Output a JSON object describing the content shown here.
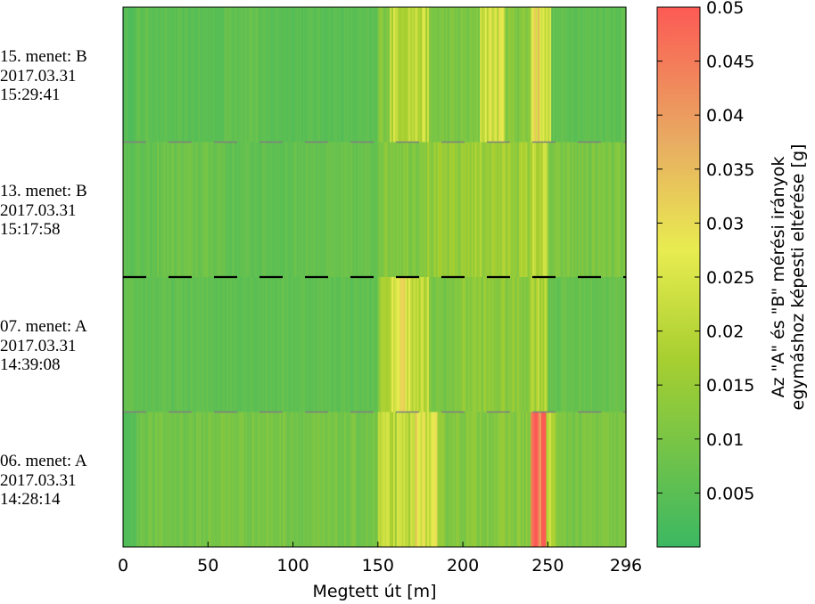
{
  "chart_data": {
    "type": "heatmap",
    "xlabel": "Megtett út [m]",
    "x_ticks": [
      0,
      50,
      100,
      150,
      200,
      250,
      296
    ],
    "xlim": [
      0,
      296
    ],
    "colorbar": {
      "label_line1": "Az \"A\" és \"B\" mérési irányok",
      "label_line2": "egymáshoz képesti eltérése [g]",
      "range": [
        0,
        0.05
      ],
      "ticks": [
        "0.005",
        "0.01",
        "0.015",
        "0.02",
        "0.025",
        "0.03",
        "0.035",
        "0.04",
        "0.045",
        "0.05"
      ],
      "colors": [
        "#3cb862",
        "#a8cf30",
        "#e8ec50",
        "#e8ac62",
        "#fc5a54"
      ]
    },
    "rows": [
      {
        "run": "15. menet: B",
        "date": "2017.03.31",
        "time": "15:29:41",
        "base": 0.004,
        "segments": [
          [
            0,
            8,
            0.004
          ],
          [
            8,
            20,
            0.006
          ],
          [
            20,
            60,
            0.005
          ],
          [
            60,
            80,
            0.007
          ],
          [
            80,
            150,
            0.005
          ],
          [
            150,
            157,
            0.012
          ],
          [
            157,
            180,
            0.021
          ],
          [
            180,
            210,
            0.01
          ],
          [
            210,
            225,
            0.024
          ],
          [
            225,
            240,
            0.012
          ],
          [
            240,
            248,
            0.03
          ],
          [
            248,
            252,
            0.022
          ],
          [
            252,
            296,
            0.006
          ]
        ]
      },
      {
        "run": "13. menet: B",
        "date": "2017.03.31",
        "time": "15:17:58",
        "base": 0.005,
        "segments": [
          [
            0,
            20,
            0.006
          ],
          [
            20,
            60,
            0.008
          ],
          [
            60,
            100,
            0.006
          ],
          [
            100,
            150,
            0.007
          ],
          [
            150,
            175,
            0.012
          ],
          [
            175,
            200,
            0.014
          ],
          [
            200,
            240,
            0.016
          ],
          [
            240,
            250,
            0.02
          ],
          [
            250,
            296,
            0.01
          ]
        ]
      },
      {
        "run": "07. menet: A",
        "date": "2017.03.31",
        "time": "14:39:08",
        "base": 0.005,
        "segments": [
          [
            0,
            150,
            0.006
          ],
          [
            150,
            158,
            0.016
          ],
          [
            158,
            170,
            0.028
          ],
          [
            170,
            180,
            0.02
          ],
          [
            180,
            196,
            0.01
          ],
          [
            196,
            240,
            0.013
          ],
          [
            240,
            250,
            0.019
          ],
          [
            250,
            296,
            0.007
          ]
        ]
      },
      {
        "run": "06. menet: A",
        "date": "2017.03.31",
        "time": "14:28:14",
        "base": 0.006,
        "segments": [
          [
            0,
            8,
            0.004
          ],
          [
            8,
            50,
            0.009
          ],
          [
            50,
            100,
            0.01
          ],
          [
            100,
            150,
            0.009
          ],
          [
            150,
            172,
            0.02
          ],
          [
            172,
            175,
            0.035
          ],
          [
            175,
            185,
            0.024
          ],
          [
            185,
            240,
            0.012
          ],
          [
            240,
            249,
            0.048
          ],
          [
            249,
            255,
            0.02
          ],
          [
            255,
            296,
            0.01
          ]
        ]
      }
    ],
    "separators": [
      "gray-dashed",
      "black-dashed",
      "gray-dashed"
    ]
  }
}
